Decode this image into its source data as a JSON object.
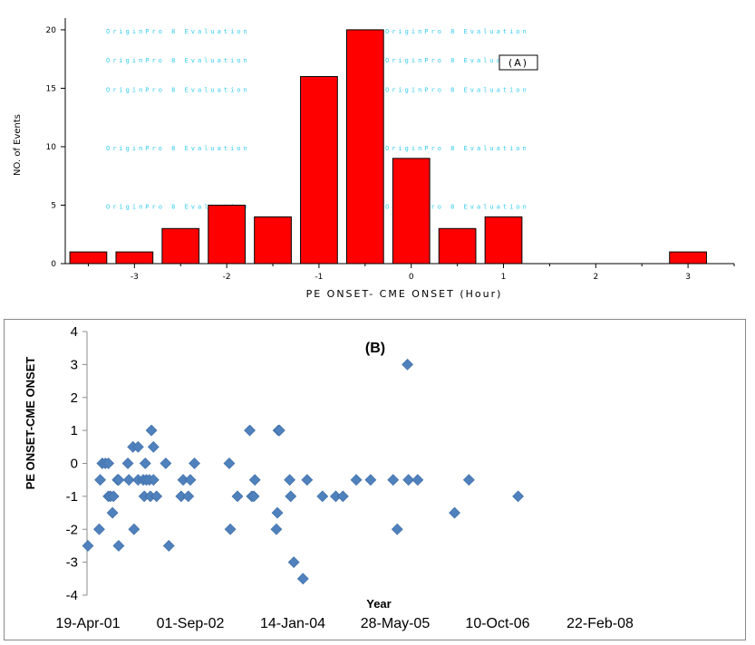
{
  "chart_data": [
    {
      "type": "bar",
      "panel_label": "(A)",
      "title": "",
      "xlabel": "PE ONSET- CME ONSET (Hour)",
      "ylabel": "NO. of Events",
      "xlim": [
        -3.75,
        3.5
      ],
      "ylim": [
        0,
        21
      ],
      "x_ticks": [
        "-3",
        "-2",
        "-1",
        "0",
        "1",
        "2",
        "3"
      ],
      "y_ticks": [
        "0",
        "5",
        "10",
        "15",
        "20"
      ],
      "bin_centers": [
        -3.5,
        -3.0,
        -2.5,
        -2.0,
        -1.5,
        -1.0,
        -0.5,
        0.0,
        0.5,
        1.0,
        3.0
      ],
      "values": [
        1,
        1,
        3,
        5,
        4,
        16,
        20,
        9,
        3,
        4,
        1
      ],
      "bar_color": "#ff0000",
      "watermark": "OriginPro 8 Evaluation"
    },
    {
      "type": "scatter",
      "panel_label": "(B)",
      "title": "",
      "xlabel": "Year",
      "ylabel": "PE ONSET-CME ONSET",
      "ylim": [
        -4,
        4
      ],
      "y_ticks": [
        "4",
        "3",
        "2",
        "1",
        "0",
        "-1",
        "-2",
        "-3",
        "-4"
      ],
      "x_tick_labels": [
        "19-Apr-01",
        "01-Sep-02",
        "14-Jan-04",
        "28-May-05",
        "10-Oct-06",
        "22-Feb-08"
      ],
      "x_unit": "days since 19-Apr-01",
      "xlim": [
        0,
        2500
      ],
      "marker_color": "#4f81bd",
      "points": [
        [
          0,
          -2.5
        ],
        [
          55,
          -2.0
        ],
        [
          60,
          -0.5
        ],
        [
          70,
          0.0
        ],
        [
          85,
          0.0
        ],
        [
          100,
          0.0
        ],
        [
          100,
          -1.0
        ],
        [
          110,
          -1.0
        ],
        [
          120,
          -1.5
        ],
        [
          125,
          -1.0
        ],
        [
          145,
          -0.5
        ],
        [
          150,
          -0.5
        ],
        [
          150,
          -2.5
        ],
        [
          195,
          0.0
        ],
        [
          200,
          -0.5
        ],
        [
          220,
          0.5
        ],
        [
          225,
          -2.0
        ],
        [
          245,
          0.5
        ],
        [
          245,
          -0.5
        ],
        [
          270,
          -0.5
        ],
        [
          275,
          -1.0
        ],
        [
          280,
          0.0
        ],
        [
          285,
          -0.5
        ],
        [
          300,
          -0.5
        ],
        [
          305,
          -1.0
        ],
        [
          310,
          1.0
        ],
        [
          320,
          0.5
        ],
        [
          320,
          -0.5
        ],
        [
          335,
          -1.0
        ],
        [
          380,
          0.0
        ],
        [
          395,
          -2.5
        ],
        [
          455,
          -1.0
        ],
        [
          465,
          -0.5
        ],
        [
          490,
          -1.0
        ],
        [
          500,
          -0.5
        ],
        [
          520,
          0.0
        ],
        [
          690,
          0.0
        ],
        [
          695,
          -2.0
        ],
        [
          730,
          -1.0
        ],
        [
          790,
          1.0
        ],
        [
          800,
          -1.0
        ],
        [
          810,
          -1.0
        ],
        [
          815,
          -0.5
        ],
        [
          920,
          -2.0
        ],
        [
          925,
          -1.5
        ],
        [
          930,
          1.0
        ],
        [
          935,
          1.0
        ],
        [
          985,
          -0.5
        ],
        [
          990,
          -1.0
        ],
        [
          1005,
          -3.0
        ],
        [
          1050,
          -3.5
        ],
        [
          1070,
          -0.5
        ],
        [
          1145,
          -1.0
        ],
        [
          1210,
          -1.0
        ],
        [
          1245,
          -1.0
        ],
        [
          1310,
          -0.5
        ],
        [
          1380,
          -0.5
        ],
        [
          1490,
          -0.5
        ],
        [
          1510,
          -2.0
        ],
        [
          1560,
          3.0
        ],
        [
          1565,
          -0.5
        ],
        [
          1610,
          -0.5
        ],
        [
          1790,
          -1.5
        ],
        [
          1860,
          -0.5
        ],
        [
          2100,
          -1.0
        ]
      ]
    }
  ]
}
